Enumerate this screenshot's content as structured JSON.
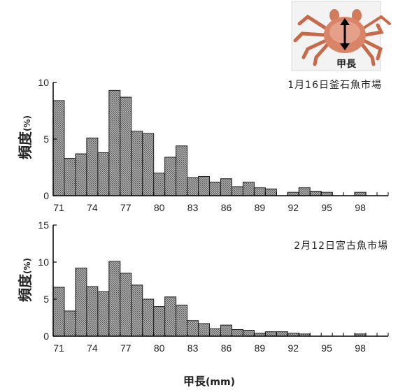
{
  "colors": {
    "bar_fill": "#a6a6a6",
    "bar_stroke": "#1e1e1e",
    "axis": "#000000"
  },
  "figure": {
    "xlabel_main": "甲長",
    "xlabel_unit": "(mm)",
    "image_caption": "甲長",
    "image_icon": "crab-photo-icon"
  },
  "chart_data": [
    {
      "type": "bar",
      "annotation": "1月16日釜石魚市場",
      "ylabel": "頻度",
      "ylabel_unit": "(%)",
      "ylim": [
        0,
        10
      ],
      "yticks": [
        0,
        5,
        10
      ],
      "x_tick_labels": [
        "71",
        "74",
        "77",
        "80",
        "83",
        "86",
        "89",
        "92",
        "95",
        "98"
      ],
      "x": [
        71,
        72,
        73,
        74,
        75,
        76,
        77,
        78,
        79,
        80,
        81,
        82,
        83,
        84,
        85,
        86,
        87,
        88,
        89,
        90,
        91,
        92,
        93,
        94,
        95,
        96,
        97,
        98,
        99,
        100
      ],
      "values": [
        8.4,
        3.3,
        3.7,
        5.1,
        3.8,
        9.3,
        8.7,
        5.7,
        5.5,
        2.0,
        3.4,
        4.4,
        1.6,
        1.7,
        1.2,
        1.5,
        0.8,
        1.2,
        0.7,
        0.6,
        0.0,
        0.3,
        0.7,
        0.4,
        0.3,
        0.0,
        0.0,
        0.3,
        0.0,
        0.0
      ]
    },
    {
      "type": "bar",
      "annotation": "2月12日宮古魚市場",
      "ylabel": "頻度",
      "ylabel_unit": "(%)",
      "ylim": [
        0,
        15
      ],
      "yticks": [
        0,
        5,
        10,
        15
      ],
      "x_tick_labels": [
        "71",
        "74",
        "77",
        "80",
        "83",
        "86",
        "89",
        "92",
        "95",
        "98"
      ],
      "x": [
        71,
        72,
        73,
        74,
        75,
        76,
        77,
        78,
        79,
        80,
        81,
        82,
        83,
        84,
        85,
        86,
        87,
        88,
        89,
        90,
        91,
        92,
        93,
        94,
        95,
        96,
        97,
        98,
        99,
        100
      ],
      "values": [
        6.6,
        3.4,
        9.2,
        6.7,
        6.0,
        10.1,
        8.5,
        6.9,
        5.0,
        4.0,
        5.3,
        4.2,
        2.1,
        1.7,
        1.0,
        1.5,
        0.9,
        0.8,
        0.4,
        0.6,
        0.6,
        0.4,
        0.3,
        0.0,
        0.0,
        0.0,
        0.0,
        0.3,
        0.0,
        0.0
      ]
    }
  ]
}
